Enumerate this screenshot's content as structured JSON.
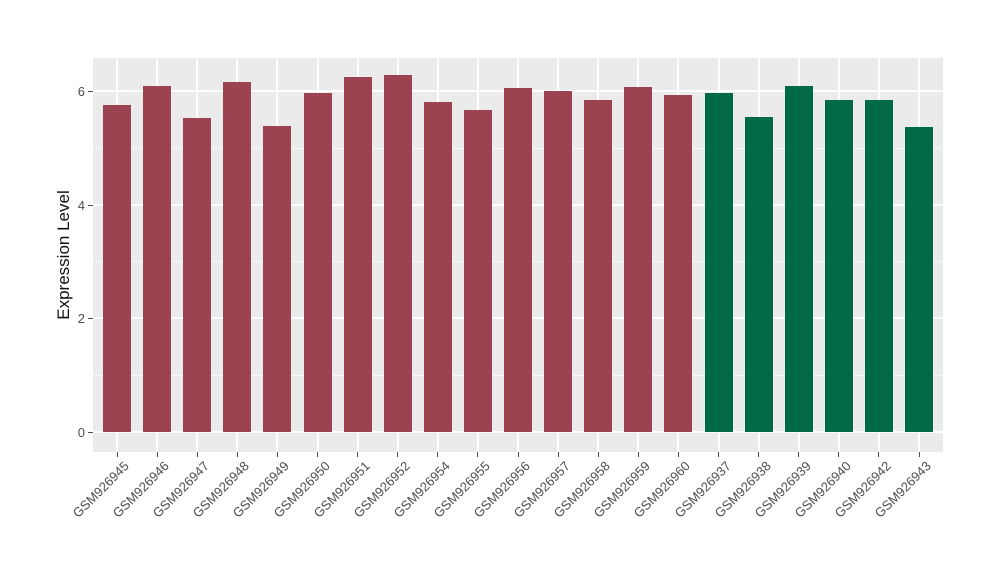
{
  "style": {
    "background": "#ffffff",
    "panel_background": "#EBEBEB",
    "gridline_color": "#ffffff",
    "axis_text_color": "#4D4D4D",
    "axis_title_color": "#111111",
    "bar_color_maroon": "#9C4351",
    "bar_color_green": "#006946"
  },
  "chart_data": {
    "type": "bar",
    "title": "",
    "xlabel": "",
    "ylabel": "Expression Level",
    "ylim": [
      -0.33,
      6.59
    ],
    "yticks": [
      0,
      2,
      4,
      6
    ],
    "yticks_minor": [
      1,
      3,
      5
    ],
    "grid": "on",
    "legend": "none",
    "categories": [
      "GSM926945",
      "GSM926946",
      "GSM926947",
      "GSM926948",
      "GSM926949",
      "GSM926950",
      "GSM926951",
      "GSM926952",
      "GSM926954",
      "GSM926955",
      "GSM926956",
      "GSM926957",
      "GSM926958",
      "GSM926959",
      "GSM926960",
      "GSM926937",
      "GSM926938",
      "GSM926939",
      "GSM926940",
      "GSM926942",
      "GSM926943"
    ],
    "values": [
      5.76,
      6.1,
      5.52,
      6.17,
      5.38,
      5.97,
      6.25,
      6.28,
      5.81,
      5.67,
      6.05,
      6.0,
      5.85,
      6.07,
      5.94,
      5.97,
      5.54,
      6.09,
      5.85,
      5.85,
      5.37
    ],
    "bar_groups": [
      "maroon",
      "maroon",
      "maroon",
      "maroon",
      "maroon",
      "maroon",
      "maroon",
      "maroon",
      "maroon",
      "maroon",
      "maroon",
      "maroon",
      "maroon",
      "maroon",
      "maroon",
      "green",
      "green",
      "green",
      "green",
      "green",
      "green"
    ]
  }
}
